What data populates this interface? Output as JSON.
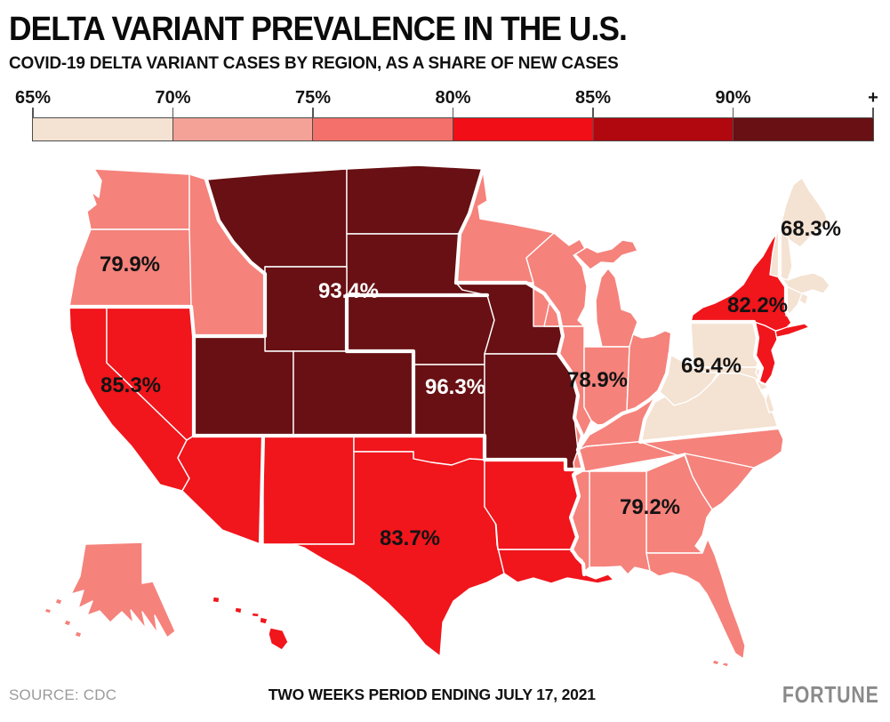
{
  "header": {
    "title": "DELTA VARIANT PREVALENCE IN THE U.S.",
    "subtitle": "COVID-19 DELTA VARIANT CASES BY REGION, AS A SHARE OF NEW CASES"
  },
  "legend": {
    "tick_labels": [
      "65%",
      "70%",
      "75%",
      "80%",
      "85%",
      "90%",
      "+"
    ],
    "segment_colors": [
      "#F4E2D2",
      "#F4A297",
      "#F3716A",
      "#F10E16",
      "#B1070F",
      "#681013"
    ],
    "outline_color": "#4d4d4d"
  },
  "chart_data": {
    "type": "choropleth",
    "title": "DELTA VARIANT PREVALENCE IN THE U.S.",
    "unit": "share of new COVID-19 cases that are Delta variant (%)",
    "scale": {
      "min_label": "65%",
      "max_label": "90%+",
      "bands": [
        [
          65,
          70
        ],
        [
          70,
          75
        ],
        [
          75,
          80
        ],
        [
          80,
          85
        ],
        [
          85,
          90
        ],
        [
          90,
          100
        ]
      ],
      "band_colors": [
        "#F4E2D2",
        "#F4A297",
        "#F3716A",
        "#F10E16",
        "#B1070F",
        "#681013"
      ]
    },
    "regions": [
      {
        "id": "northwest",
        "value": 79.9,
        "display": "79.9%",
        "color": "#F5827B",
        "label_color": "#131313"
      },
      {
        "id": "mountain-north-plains",
        "value": 93.4,
        "display": "93.4%",
        "color": "#681013",
        "label_color": "#FFFFFF"
      },
      {
        "id": "pacific-southwest",
        "value": 85.3,
        "display": "85.3%",
        "color": "#F1151C",
        "label_color": "#131313"
      },
      {
        "id": "central-plains",
        "value": 96.3,
        "display": "96.3%",
        "color": "#681013",
        "label_color": "#FFFFFF"
      },
      {
        "id": "south-central",
        "value": 83.7,
        "display": "83.7%",
        "color": "#F1151C",
        "label_color": "#131313"
      },
      {
        "id": "midwest-great-lakes",
        "value": 78.9,
        "display": "78.9%",
        "color": "#F5827B",
        "label_color": "#131313"
      },
      {
        "id": "southeast",
        "value": 79.2,
        "display": "79.2%",
        "color": "#F5827B",
        "label_color": "#131313"
      },
      {
        "id": "mid-atlantic",
        "value": 69.4,
        "display": "69.4%",
        "color": "#F4E2D2",
        "label_color": "#131313"
      },
      {
        "id": "new-york-new-jersey",
        "value": 82.2,
        "display": "82.2%",
        "color": "#F1151C",
        "label_color": "#131313"
      },
      {
        "id": "new-england",
        "value": 68.3,
        "display": "68.3%",
        "color": "#F4E2D2",
        "label_color": "#131313"
      }
    ]
  },
  "footer": {
    "source": "SOURCE: CDC",
    "period": "TWO WEEKS PERIOD ENDING JULY 17, 2021",
    "brand": "FORTUNE"
  }
}
